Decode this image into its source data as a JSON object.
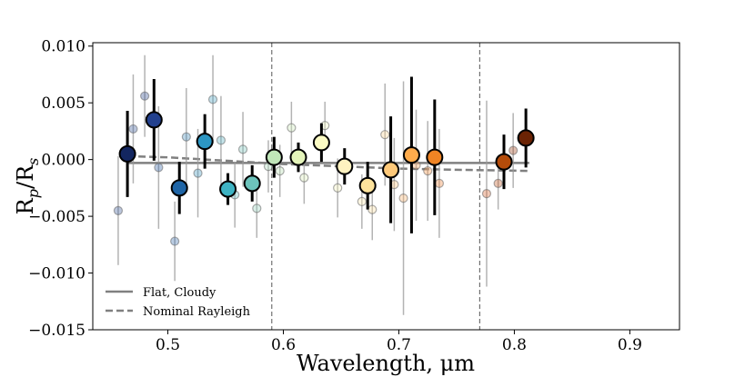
{
  "chart_data": {
    "type": "scatter",
    "title": "",
    "xlabel": "Wavelength, μm",
    "ylabel": "Rp/Rs",
    "ylabel_main": "R",
    "ylabel_sub1": "p",
    "ylabel_sep": "/R",
    "ylabel_sub2": "s",
    "xlim": [
      0.435,
      0.943
    ],
    "ylim": [
      -0.015,
      0.0103
    ],
    "xticks": [
      0.5,
      0.6,
      0.7,
      0.8,
      0.9
    ],
    "xtick_labels": [
      "0.5",
      "0.6",
      "0.7",
      "0.8",
      "0.9"
    ],
    "yticks": [
      -0.015,
      -0.01,
      -0.005,
      0.0,
      0.005,
      0.01
    ],
    "ytick_labels": [
      "−0.015",
      "−0.010",
      "−0.005",
      "0.000",
      "0.005",
      "0.010"
    ],
    "grid": false,
    "vlines": [
      0.59,
      0.77
    ],
    "legend": {
      "position": "bottom-left",
      "entries": [
        {
          "label": "Flat, Cloudy",
          "style": "solid",
          "color": "#808080"
        },
        {
          "label": "Nominal Rayleigh",
          "style": "dashed",
          "color": "#808080"
        }
      ]
    },
    "models": [
      {
        "name": "Flat, Cloudy",
        "style": "solid",
        "color": "#808080",
        "x": [
          0.465,
          0.813
        ],
        "y": [
          -0.0003,
          -0.0003
        ]
      },
      {
        "name": "Nominal Rayleigh",
        "style": "dashed",
        "color": "#808080",
        "x": [
          0.465,
          0.5,
          0.55,
          0.6,
          0.65,
          0.7,
          0.75,
          0.813
        ],
        "y": [
          0.0003,
          0.0002,
          -0.0001,
          -0.0004,
          -0.0006,
          -0.0008,
          -0.0009,
          -0.001
        ]
      }
    ],
    "series": [
      {
        "name": "binned",
        "points": [
          {
            "x": 0.465,
            "y": 0.0005,
            "err": 0.0038,
            "color": "#132660"
          },
          {
            "x": 0.488,
            "y": 0.0035,
            "err": 0.0036,
            "color": "#22408e"
          },
          {
            "x": 0.51,
            "y": -0.0025,
            "err": 0.0023,
            "color": "#1f65a6"
          },
          {
            "x": 0.532,
            "y": 0.0016,
            "err": 0.0024,
            "color": "#2c96c3"
          },
          {
            "x": 0.552,
            "y": -0.0026,
            "err": 0.0014,
            "color": "#3eb3c3"
          },
          {
            "x": 0.573,
            "y": -0.0021,
            "err": 0.0016,
            "color": "#6cc3bb"
          },
          {
            "x": 0.592,
            "y": 0.0002,
            "err": 0.0018,
            "color": "#c0e6b9"
          },
          {
            "x": 0.613,
            "y": 0.0002,
            "err": 0.0013,
            "color": "#e4f4ba"
          },
          {
            "x": 0.633,
            "y": 0.0015,
            "err": 0.0017,
            "color": "#fbfbc4"
          },
          {
            "x": 0.653,
            "y": -0.0006,
            "err": 0.0016,
            "color": "#fef2c0"
          },
          {
            "x": 0.673,
            "y": -0.0023,
            "err": 0.0021,
            "color": "#fee39c"
          },
          {
            "x": 0.693,
            "y": -0.0009,
            "err": 0.0047,
            "color": "#fec97a"
          },
          {
            "x": 0.711,
            "y": 0.0004,
            "err": 0.0069,
            "color": "#feab4c"
          },
          {
            "x": 0.731,
            "y": 0.0002,
            "err": 0.0051,
            "color": "#f08424"
          },
          {
            "x": 0.791,
            "y": -0.0002,
            "err": 0.0024,
            "color": "#b44c0a"
          },
          {
            "x": 0.81,
            "y": 0.0019,
            "err": 0.0026,
            "color": "#6b2304"
          }
        ]
      },
      {
        "name": "unbinned",
        "points": [
          {
            "x": 0.457,
            "y": -0.0045,
            "err": 0.0048,
            "color": "#3b5b9c"
          },
          {
            "x": 0.47,
            "y": 0.0027,
            "err": 0.0048,
            "color": "#3a5a9a"
          },
          {
            "x": 0.48,
            "y": 0.0056,
            "err": 0.0036,
            "color": "#2d4a90"
          },
          {
            "x": 0.492,
            "y": -0.0007,
            "err": 0.0054,
            "color": "#3162a5"
          },
          {
            "x": 0.506,
            "y": -0.0072,
            "err": 0.0035,
            "color": "#3c70b0"
          },
          {
            "x": 0.516,
            "y": 0.002,
            "err": 0.0043,
            "color": "#3d86b8"
          },
          {
            "x": 0.526,
            "y": -0.0012,
            "err": 0.0039,
            "color": "#3f98c0"
          },
          {
            "x": 0.539,
            "y": 0.0053,
            "err": 0.0039,
            "color": "#4aa3c4"
          },
          {
            "x": 0.546,
            "y": 0.0017,
            "err": 0.0039,
            "color": "#5ab3c4"
          },
          {
            "x": 0.558,
            "y": -0.0031,
            "err": 0.0029,
            "color": "#68bcc0"
          },
          {
            "x": 0.565,
            "y": 0.0009,
            "err": 0.0033,
            "color": "#7cc6bd"
          },
          {
            "x": 0.577,
            "y": -0.0043,
            "err": 0.0026,
            "color": "#94d0bc"
          },
          {
            "x": 0.587,
            "y": -0.0006,
            "err": 0.0023,
            "color": "#a9dab9"
          },
          {
            "x": 0.597,
            "y": -0.001,
            "err": 0.0023,
            "color": "#bce2b7"
          },
          {
            "x": 0.607,
            "y": 0.0028,
            "err": 0.0023,
            "color": "#cfebb9"
          },
          {
            "x": 0.618,
            "y": -0.0016,
            "err": 0.0023,
            "color": "#dff2bc"
          },
          {
            "x": 0.636,
            "y": 0.003,
            "err": 0.0021,
            "color": "#eff6bf"
          },
          {
            "x": 0.647,
            "y": -0.0025,
            "err": 0.0026,
            "color": "#f4f0b9"
          },
          {
            "x": 0.668,
            "y": -0.0037,
            "err": 0.0024,
            "color": "#f8e7ae"
          },
          {
            "x": 0.677,
            "y": -0.0044,
            "err": 0.0027,
            "color": "#fbe0a4"
          },
          {
            "x": 0.688,
            "y": 0.0022,
            "err": 0.0045,
            "color": "#fcd493"
          },
          {
            "x": 0.696,
            "y": -0.0022,
            "err": 0.0041,
            "color": "#fdc582"
          },
          {
            "x": 0.704,
            "y": -0.0034,
            "err": 0.0103,
            "color": "#fdb56e"
          },
          {
            "x": 0.715,
            "y": -0.0005,
            "err": 0.0049,
            "color": "#fca35c"
          },
          {
            "x": 0.725,
            "y": -0.001,
            "err": 0.0044,
            "color": "#f89446"
          },
          {
            "x": 0.735,
            "y": -0.0021,
            "err": 0.0048,
            "color": "#f0843a"
          },
          {
            "x": 0.776,
            "y": -0.003,
            "err": 0.0082,
            "color": "#d9622a"
          },
          {
            "x": 0.786,
            "y": -0.0021,
            "err": 0.0023,
            "color": "#c4561f"
          },
          {
            "x": 0.799,
            "y": 0.0008,
            "err": 0.0033,
            "color": "#a04319"
          }
        ]
      }
    ]
  }
}
